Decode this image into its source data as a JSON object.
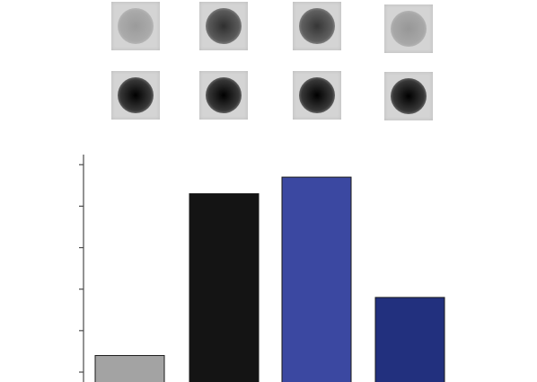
{
  "blots": {
    "top_row": [
      {
        "intensity": 0.28
      },
      {
        "intensity": 0.78
      },
      {
        "intensity": 0.75
      },
      {
        "intensity": 0.3
      }
    ],
    "bottom_row": [
      {
        "intensity": 1.0
      },
      {
        "intensity": 1.0
      },
      {
        "intensity": 1.0
      },
      {
        "intensity": 1.0
      }
    ]
  },
  "chart_data": {
    "type": "bar",
    "title": "",
    "xlabel": "",
    "ylabel": "",
    "categories": [
      "",
      "",
      "",
      ""
    ],
    "values": [
      0.4,
      4.3,
      4.7,
      1.8
    ],
    "colors": [
      "#a3a3a3",
      "#141414",
      "#3b48a1",
      "#22307e"
    ],
    "ylim": [
      0,
      5.2
    ],
    "yticks": [
      0,
      1,
      2,
      3,
      4,
      5
    ],
    "grid": false,
    "legend": "none"
  }
}
